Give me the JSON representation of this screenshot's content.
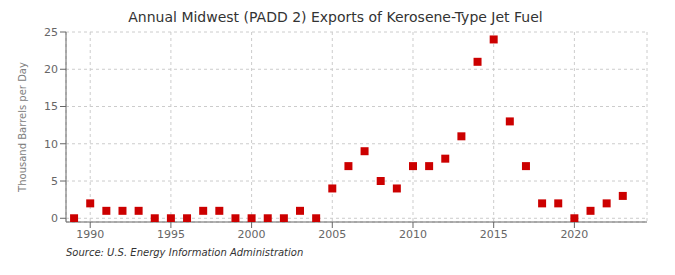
{
  "chart_data": {
    "type": "scatter",
    "title": "Annual Midwest (PADD 2) Exports of Kerosene-Type Jet Fuel",
    "y_label": "Thousand Barrels per Day",
    "annotation": "Source: U.S. Energy Information Administration",
    "x": [
      1989,
      1990,
      1991,
      1992,
      1993,
      1994,
      1995,
      1996,
      1997,
      1998,
      1999,
      2000,
      2001,
      2002,
      2003,
      2004,
      2005,
      2006,
      2007,
      2008,
      2009,
      2010,
      2011,
      2012,
      2013,
      2014,
      2015,
      2016,
      2017,
      2018,
      2019,
      2020,
      2021,
      2022,
      2023
    ],
    "values": [
      0,
      2,
      1,
      1,
      1,
      0,
      0,
      0,
      1,
      1,
      0,
      0,
      0,
      0,
      1,
      0,
      4,
      7,
      9,
      5,
      4,
      7,
      7,
      8,
      11,
      21,
      24,
      13,
      7,
      2,
      2,
      0,
      1,
      2,
      3
    ],
    "color": "#cc0000",
    "marker": "square",
    "xlim": [
      1988.5,
      2024.5
    ],
    "ylim": [
      -0.5,
      25
    ],
    "xticks": [
      1990,
      1995,
      2000,
      2005,
      2010,
      2015,
      2020
    ],
    "yticks": [
      0,
      5,
      10,
      15,
      20,
      25
    ],
    "grid": true
  }
}
